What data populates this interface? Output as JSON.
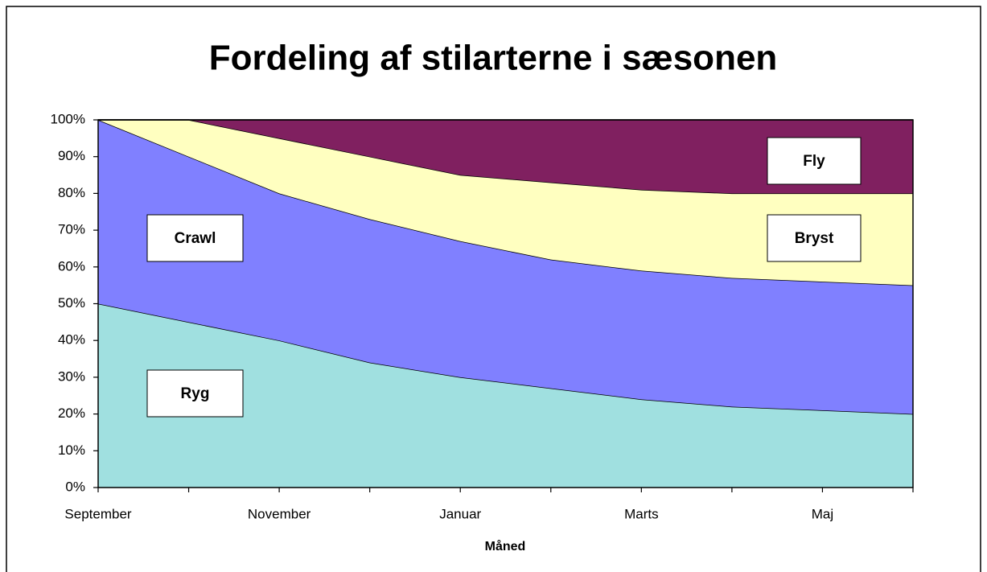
{
  "chart_data": {
    "type": "stacked_area_percent",
    "title": "Fordeling af stilarterne i sæsonen",
    "x_label": "Måned",
    "categories": [
      "September",
      null,
      "November",
      null,
      "Januar",
      null,
      "Marts",
      null,
      "Maj",
      null
    ],
    "series": [
      {
        "name": "Ryg",
        "color": "#a0e0e0",
        "values": [
          50,
          45,
          40,
          34,
          30,
          27,
          24,
          22,
          21,
          20
        ]
      },
      {
        "name": "Crawl",
        "color": "#8080ff",
        "values": [
          50,
          45,
          40,
          39,
          37,
          35,
          35,
          35,
          35,
          35
        ]
      },
      {
        "name": "Bryst",
        "color": "#ffffc0",
        "values": [
          0,
          10,
          15,
          17,
          18,
          21,
          22,
          23,
          24,
          25
        ]
      },
      {
        "name": "Fly",
        "color": "#802060",
        "values": [
          0,
          0,
          5,
          10,
          15,
          17,
          19,
          20,
          20,
          20
        ]
      }
    ],
    "ylim": [
      0,
      100
    ],
    "yticks": [
      {
        "value": 0,
        "label": "0%"
      },
      {
        "value": 10,
        "label": "10%"
      },
      {
        "value": 20,
        "label": "20%"
      },
      {
        "value": 30,
        "label": "30%"
      },
      {
        "value": 40,
        "label": "40%"
      },
      {
        "value": 50,
        "label": "50%"
      },
      {
        "value": 60,
        "label": "60%"
      },
      {
        "value": 70,
        "label": "70%"
      },
      {
        "value": 80,
        "label": "80%"
      },
      {
        "value": 90,
        "label": "90%"
      },
      {
        "value": 100,
        "label": "100%"
      }
    ],
    "grid": false
  }
}
